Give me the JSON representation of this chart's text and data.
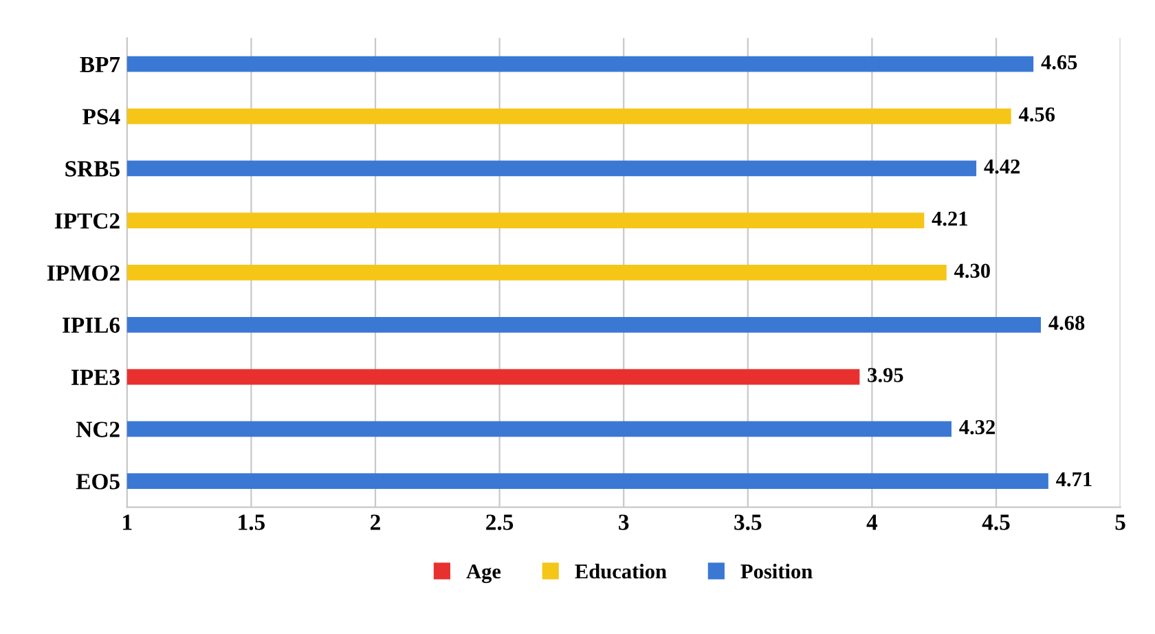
{
  "chart_data": {
    "type": "bar",
    "orientation": "horizontal",
    "categories": [
      "BP7",
      "PS4",
      "SRB5",
      "IPTC2",
      "IPMO2",
      "IPIL6",
      "IPE3",
      "NC2",
      "EO5"
    ],
    "series": [
      {
        "name": "Age",
        "color": "#e8312f",
        "values": [
          null,
          null,
          null,
          null,
          null,
          null,
          3.95,
          null,
          null
        ],
        "value_labels": [
          null,
          null,
          null,
          null,
          null,
          null,
          "3.95",
          null,
          null
        ]
      },
      {
        "name": "Education",
        "color": "#f5c518",
        "values": [
          null,
          4.56,
          null,
          4.21,
          4.3,
          null,
          null,
          null,
          null
        ],
        "value_labels": [
          null,
          "4.56",
          null,
          "4.21",
          "4.30",
          null,
          null,
          null,
          null
        ]
      },
      {
        "name": "Position",
        "color": "#3a78d4",
        "values": [
          4.65,
          null,
          4.42,
          null,
          null,
          4.68,
          null,
          4.32,
          4.71
        ],
        "value_labels": [
          "4.65",
          null,
          "4.42",
          null,
          null,
          "4.68",
          null,
          "4.32",
          "4.71"
        ]
      }
    ],
    "xlim": [
      1,
      5
    ],
    "xticks": [
      1,
      1.5,
      2,
      2.5,
      3,
      3.5,
      4,
      4.5,
      5
    ],
    "grid": "x",
    "legend": "bottom"
  }
}
